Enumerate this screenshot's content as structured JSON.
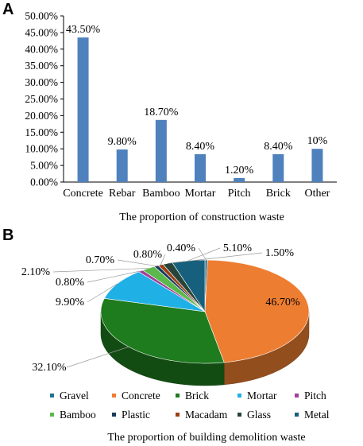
{
  "chart_data": [
    {
      "type": "bar",
      "panel": "A",
      "categories": [
        "Concrete",
        "Rebar",
        "Bamboo",
        "Mortar",
        "Pitch",
        "Brick",
        "Other"
      ],
      "values": [
        43.5,
        9.8,
        18.7,
        8.4,
        1.2,
        8.4,
        10
      ],
      "data_labels": [
        "43.50%",
        "9.80%",
        "18.70%",
        "8.40%",
        "1.20%",
        "8.40%",
        "10%"
      ],
      "y_tick_labels": [
        "0.00%",
        "5.00%",
        "10.00%",
        "15.00%",
        "20.00%",
        "25.00%",
        "30.00%",
        "35.00%",
        "40.00%",
        "45.00%",
        "50.00%"
      ],
      "ylim": [
        0,
        50
      ],
      "color": "#4f81bd",
      "caption": "The proportion of construction waste",
      "grid": false
    },
    {
      "type": "pie",
      "panel": "B",
      "slices": [
        {
          "name": "Gravel",
          "value": 0.4,
          "label": "0.40%",
          "color": "#1f7391"
        },
        {
          "name": "Concrete",
          "value": 46.7,
          "label": "46.70%",
          "color": "#ed7d31"
        },
        {
          "name": "Brick",
          "value": 32.1,
          "label": "32.10%",
          "color": "#1e7b1e"
        },
        {
          "name": "Mortar",
          "value": 9.9,
          "label": "9.90%",
          "color": "#1fb0e6"
        },
        {
          "name": "Pitch",
          "value": 0.8,
          "label": "0.80%",
          "color": "#a040a0"
        },
        {
          "name": "Bamboo",
          "value": 2.1,
          "label": "2.10%",
          "color": "#5ab94a"
        },
        {
          "name": "Plastic",
          "value": 0.7,
          "label": "0.70%",
          "color": "#1a3a5c"
        },
        {
          "name": "Macadam",
          "value": 0.8,
          "label": "0.80%",
          "color": "#9c3f16"
        },
        {
          "name": "Glass",
          "value": 1.5,
          "label": "1.50%",
          "color": "#26443a"
        },
        {
          "name": "Metal",
          "value": 5.1,
          "label": "5.10%",
          "color": "#16607e"
        }
      ],
      "legend_placement": "bottom",
      "caption": "The proportion of building demolition waste"
    }
  ]
}
